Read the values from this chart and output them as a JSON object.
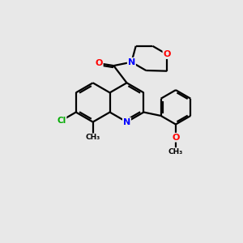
{
  "background_color": "#e8e8e8",
  "bond_color": "#000000",
  "atom_colors": {
    "O": "#ff0000",
    "N": "#0000ff",
    "Cl": "#00aa00",
    "C": "#000000"
  },
  "figsize": [
    3.0,
    3.0
  ],
  "dpi": 100
}
